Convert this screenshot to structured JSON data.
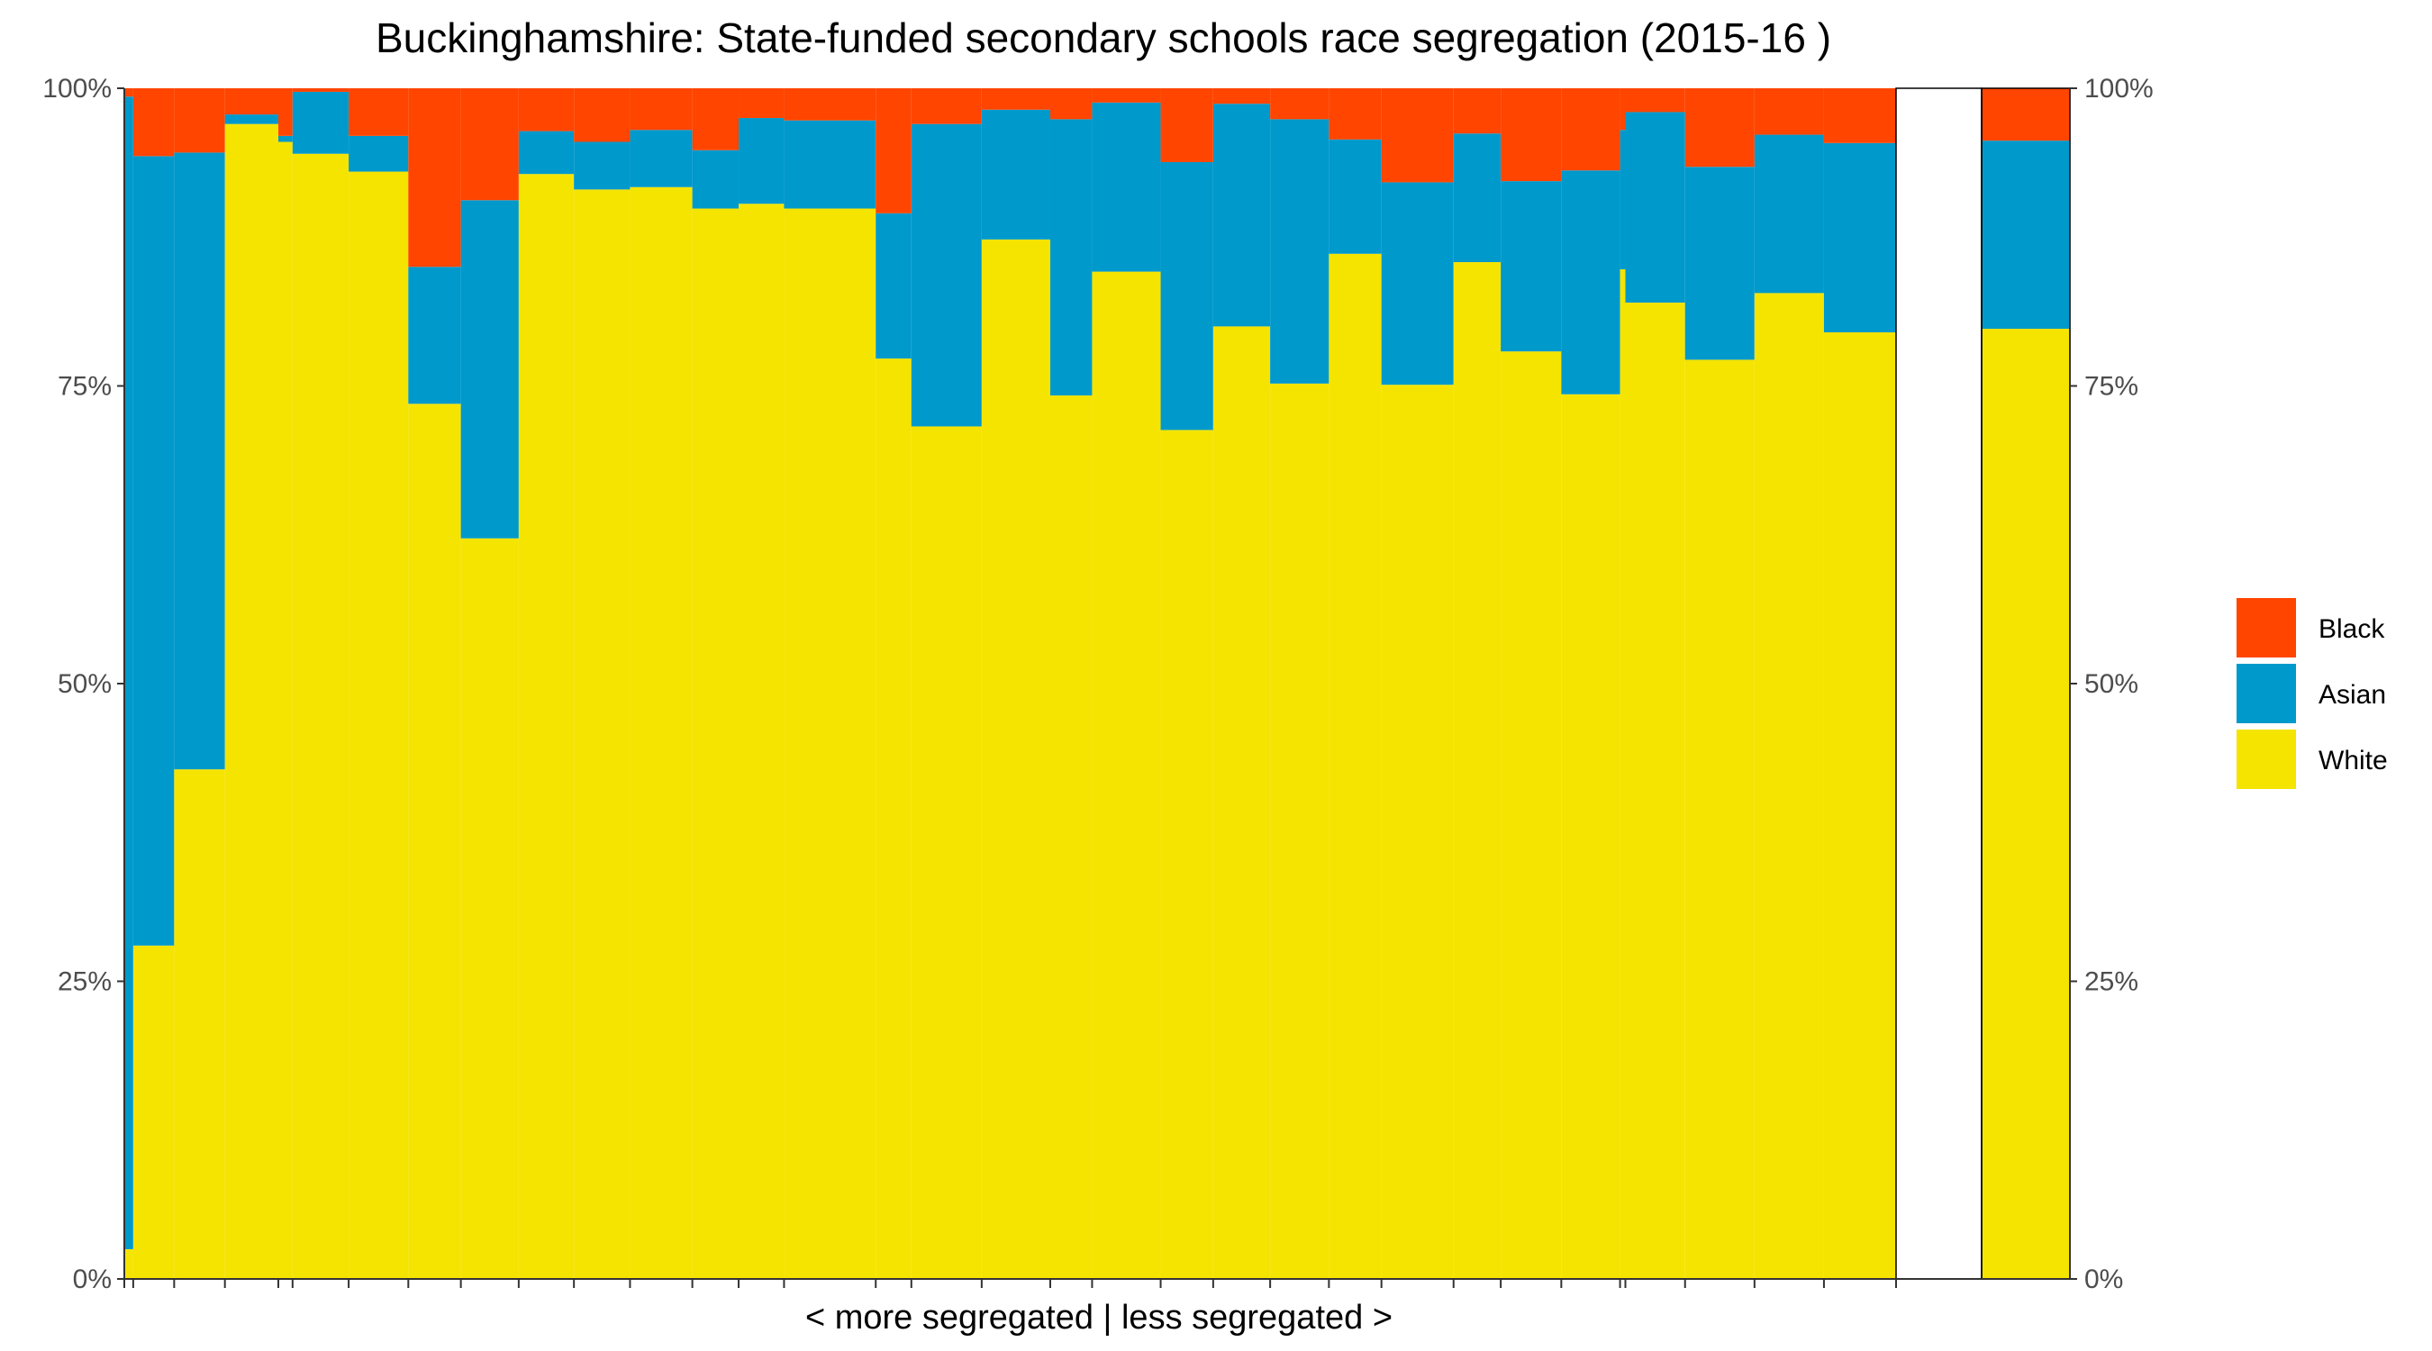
{
  "chart_data": {
    "type": "bar",
    "subtype": "stacked-100-percent, variable-width (school size)",
    "title": "Buckinghamshire: State-funded secondary schools race segregation (2015-16 )",
    "xlabel": "< more segregated | less segregated >",
    "ylabel": "",
    "ylim": [
      0,
      100
    ],
    "y_ticks": [
      "0%",
      "25%",
      "50%",
      "75%",
      "100%"
    ],
    "y_tick_values": [
      0,
      25,
      50,
      75,
      100
    ],
    "secondary_y_axis": true,
    "grid": false,
    "legend_position": "right",
    "stack_order_bottom_to_top": [
      "White",
      "Asian",
      "Black"
    ],
    "series": [
      {
        "name": "Black",
        "color": "#FF4500"
      },
      {
        "name": "Asian",
        "color": "#0099CC"
      },
      {
        "name": "White",
        "color": "#F5E400"
      }
    ],
    "legend": [
      "Black",
      "Asian",
      "White"
    ],
    "schools": [
      {
        "rel_size": 1.0,
        "white": 2.5,
        "asian": 96.8,
        "black": 0.7
      },
      {
        "rel_size": 4.6,
        "white": 28.0,
        "asian": 66.3,
        "black": 5.7
      },
      {
        "rel_size": 5.7,
        "white": 42.8,
        "asian": 51.8,
        "black": 5.4
      },
      {
        "rel_size": 6.0,
        "white": 97.0,
        "asian": 0.8,
        "black": 2.2
      },
      {
        "rel_size": 1.6,
        "white": 95.5,
        "asian": 0.5,
        "black": 4.0
      },
      {
        "rel_size": 6.3,
        "white": 94.5,
        "asian": 5.2,
        "black": 0.3
      },
      {
        "rel_size": 6.7,
        "white": 93.0,
        "asian": 3.0,
        "black": 4.0
      },
      {
        "rel_size": 5.9,
        "white": 73.5,
        "asian": 11.5,
        "black": 15.0
      },
      {
        "rel_size": 6.5,
        "white": 62.2,
        "asian": 28.4,
        "black": 9.4
      },
      {
        "rel_size": 6.2,
        "white": 92.8,
        "asian": 3.6,
        "black": 3.6
      },
      {
        "rel_size": 6.3,
        "white": 91.5,
        "asian": 4.0,
        "black": 4.5
      },
      {
        "rel_size": 7.0,
        "white": 91.7,
        "asian": 4.8,
        "black": 3.5
      },
      {
        "rel_size": 5.2,
        "white": 89.9,
        "asian": 4.9,
        "black": 5.2
      },
      {
        "rel_size": 5.1,
        "white": 90.3,
        "asian": 7.2,
        "black": 2.5
      },
      {
        "rel_size": 10.3,
        "white": 89.9,
        "asian": 7.4,
        "black": 2.7
      },
      {
        "rel_size": 4.0,
        "white": 77.3,
        "asian": 12.2,
        "black": 10.5
      },
      {
        "rel_size": 7.9,
        "white": 71.6,
        "asian": 25.4,
        "black": 3.0
      },
      {
        "rel_size": 7.7,
        "white": 87.3,
        "asian": 10.9,
        "black": 1.8
      },
      {
        "rel_size": 4.7,
        "white": 74.2,
        "asian": 23.2,
        "black": 2.6
      },
      {
        "rel_size": 7.7,
        "white": 84.6,
        "asian": 14.2,
        "black": 1.2
      },
      {
        "rel_size": 5.9,
        "white": 71.3,
        "asian": 22.5,
        "black": 6.2
      },
      {
        "rel_size": 6.4,
        "white": 80.0,
        "asian": 18.7,
        "black": 1.3
      },
      {
        "rel_size": 6.6,
        "white": 75.2,
        "asian": 22.2,
        "black": 2.6
      },
      {
        "rel_size": 5.9,
        "white": 86.1,
        "asian": 9.6,
        "black": 4.3
      },
      {
        "rel_size": 8.1,
        "white": 75.1,
        "asian": 17.0,
        "black": 7.9
      },
      {
        "rel_size": 5.3,
        "white": 85.4,
        "asian": 10.8,
        "black": 3.8
      },
      {
        "rel_size": 6.8,
        "white": 77.9,
        "asian": 14.3,
        "black": 7.8
      },
      {
        "rel_size": 6.6,
        "white": 74.3,
        "asian": 18.8,
        "black": 6.9
      },
      {
        "rel_size": 0.6,
        "white": 84.8,
        "asian": 11.7,
        "black": 3.5
      },
      {
        "rel_size": 6.7,
        "white": 82.0,
        "asian": 16.0,
        "black": 2.0
      },
      {
        "rel_size": 7.8,
        "white": 77.2,
        "asian": 16.2,
        "black": 6.6
      },
      {
        "rel_size": 7.8,
        "white": 82.8,
        "asian": 13.3,
        "black": 3.9
      },
      {
        "rel_size": 8.1,
        "white": 79.5,
        "asian": 15.9,
        "black": 4.6
      }
    ],
    "overall": {
      "white": 79.8,
      "asian": 15.8,
      "black": 4.4
    }
  }
}
